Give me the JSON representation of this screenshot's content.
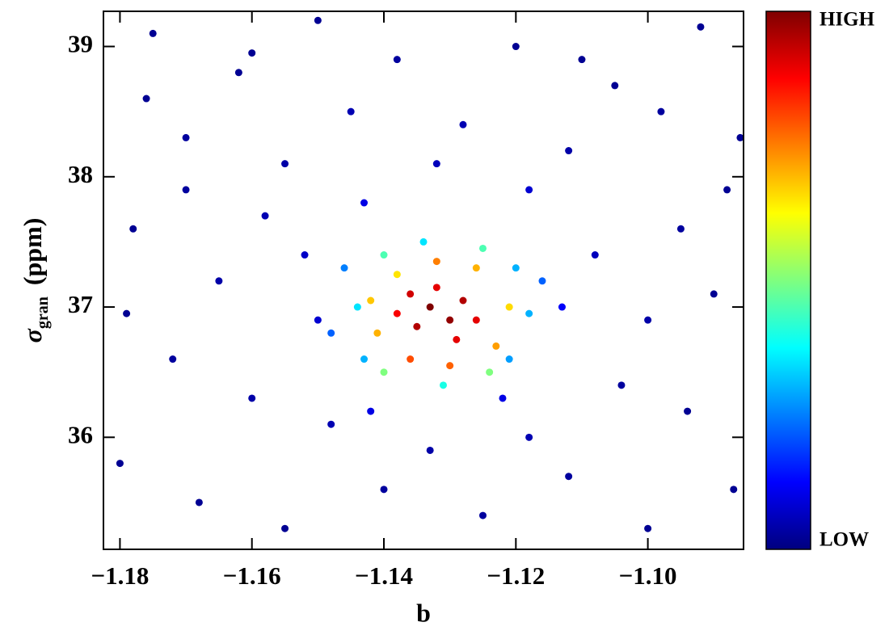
{
  "chart_data": {
    "type": "scatter",
    "xlabel": "b",
    "ylabel": {
      "symbol": "σ",
      "subscript": "gran",
      "unit": "(ppm)"
    },
    "colorbar": {
      "high": "HIGH",
      "low": "LOW",
      "colormap": [
        "#00007f",
        "#0000ff",
        "#007fff",
        "#00ffff",
        "#7fff7f",
        "#ffff00",
        "#ff7f00",
        "#ff0000",
        "#7f0000"
      ]
    },
    "xlim": [
      -1.1825,
      -1.0855
    ],
    "ylim": [
      35.14,
      39.27
    ],
    "xticks": [
      {
        "value": -1.18,
        "label": "−1.18"
      },
      {
        "value": -1.16,
        "label": "−1.16"
      },
      {
        "value": -1.14,
        "label": "−1.14"
      },
      {
        "value": -1.12,
        "label": "−1.12"
      },
      {
        "value": -1.1,
        "label": "−1.10"
      }
    ],
    "yticks": [
      36,
      37,
      38,
      39
    ],
    "x": [
      -1.175,
      -1.162,
      -1.15,
      -1.138,
      -1.12,
      -1.105,
      -1.092,
      -1.17,
      -1.155,
      -1.145,
      -1.128,
      -1.112,
      -1.098,
      -1.088,
      -1.178,
      -1.165,
      -1.158,
      -1.15,
      -1.108,
      -1.1,
      -1.09,
      -1.172,
      -1.16,
      -1.148,
      -1.118,
      -1.104,
      -1.094,
      -1.18,
      -1.168,
      -1.155,
      -1.14,
      -1.125,
      -1.112,
      -1.1,
      -1.087,
      -1.176,
      -1.143,
      -1.118,
      -1.142,
      -1.122,
      -1.132,
      -1.133,
      -1.17,
      -1.095,
      -1.11,
      -1.16,
      -1.086,
      -1.179,
      -1.152,
      -1.113,
      -1.146,
      -1.143,
      -1.12,
      -1.121,
      -1.134,
      -1.131,
      -1.144,
      -1.118,
      -1.14,
      -1.125,
      -1.14,
      -1.124,
      -1.148,
      -1.116,
      -1.138,
      -1.126,
      -1.141,
      -1.123,
      -1.132,
      -1.13,
      -1.142,
      -1.121,
      -1.136,
      -1.133,
      -1.13,
      -1.135,
      -1.128,
      -1.136,
      -1.129,
      -1.126,
      -1.138,
      -1.132
    ],
    "y": [
      39.1,
      38.8,
      39.2,
      38.9,
      39.0,
      38.7,
      39.15,
      38.3,
      38.1,
      38.5,
      38.4,
      38.2,
      38.5,
      37.9,
      37.6,
      37.2,
      37.7,
      36.9,
      37.4,
      36.9,
      37.1,
      36.6,
      36.3,
      36.1,
      36.0,
      36.4,
      36.2,
      35.8,
      35.5,
      35.3,
      35.6,
      35.4,
      35.7,
      35.3,
      35.6,
      38.6,
      37.8,
      37.9,
      36.2,
      36.3,
      38.1,
      35.9,
      37.9,
      37.6,
      38.9,
      38.95,
      38.3,
      36.95,
      37.4,
      37.0,
      37.3,
      36.6,
      37.3,
      36.6,
      37.5,
      36.4,
      37.0,
      36.95,
      37.4,
      37.45,
      36.5,
      36.5,
      36.8,
      37.2,
      37.25,
      37.3,
      36.8,
      36.7,
      37.35,
      36.55,
      37.05,
      37.0,
      36.6,
      37.0,
      36.9,
      36.85,
      37.05,
      37.1,
      36.75,
      36.9,
      36.95,
      37.15
    ],
    "density": [
      0.02,
      0.02,
      0.02,
      0.03,
      0.02,
      0.02,
      0.02,
      0.03,
      0.04,
      0.05,
      0.05,
      0.04,
      0.03,
      0.02,
      0.02,
      0.04,
      0.05,
      0.08,
      0.06,
      0.04,
      0.02,
      0.03,
      0.04,
      0.05,
      0.05,
      0.03,
      0.02,
      0.02,
      0.02,
      0.02,
      0.03,
      0.03,
      0.03,
      0.02,
      0.02,
      0.02,
      0.1,
      0.08,
      0.1,
      0.1,
      0.06,
      0.04,
      0.03,
      0.03,
      0.02,
      0.02,
      0.02,
      0.02,
      0.07,
      0.12,
      0.25,
      0.3,
      0.3,
      0.28,
      0.35,
      0.4,
      0.35,
      0.3,
      0.45,
      0.45,
      0.5,
      0.5,
      0.22,
      0.22,
      0.65,
      0.7,
      0.7,
      0.72,
      0.75,
      0.78,
      0.68,
      0.66,
      0.8,
      1,
      0.98,
      0.95,
      0.95,
      0.92,
      0.9,
      0.9,
      0.88,
      0.9
    ]
  }
}
